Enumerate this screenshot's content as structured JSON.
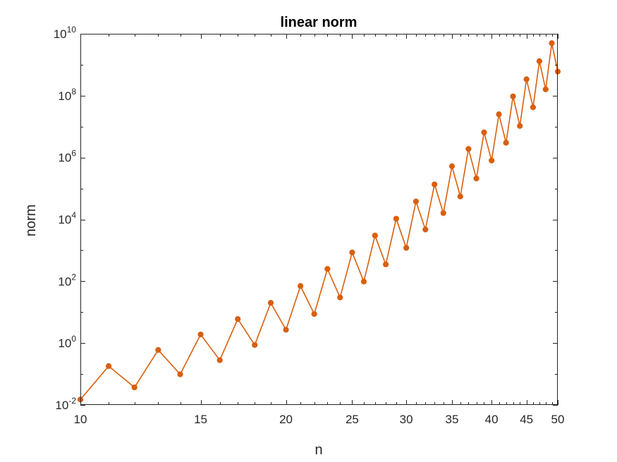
{
  "chart_data": {
    "type": "line",
    "title": "linear norm",
    "xlabel": "n",
    "ylabel": "norm",
    "xscale": "log",
    "yscale": "log",
    "xlim": [
      10,
      50
    ],
    "ylim": [
      0.01,
      10000000000
    ],
    "xticks": [
      "10",
      "15",
      "20",
      "25",
      "30",
      "35",
      "40",
      "45",
      "50"
    ],
    "xtick_values": [
      10,
      15,
      20,
      25,
      30,
      35,
      40,
      45,
      50
    ],
    "yticks": [
      {
        "value": 0.01,
        "base": "10",
        "exp": "-2"
      },
      {
        "value": 1,
        "base": "10",
        "exp": "0"
      },
      {
        "value": 100,
        "base": "10",
        "exp": "2"
      },
      {
        "value": 10000,
        "base": "10",
        "exp": "4"
      },
      {
        "value": 1000000,
        "base": "10",
        "exp": "6"
      },
      {
        "value": 100000000,
        "base": "10",
        "exp": "8"
      },
      {
        "value": 10000000000,
        "base": "10",
        "exp": "10"
      }
    ],
    "grid": false,
    "series": [
      {
        "color": "#D95F0E",
        "marker": "filled-circle",
        "x": [
          10,
          11,
          12,
          13,
          14,
          15,
          16,
          17,
          18,
          19,
          20,
          21,
          22,
          23,
          24,
          25,
          26,
          27,
          28,
          29,
          30,
          31,
          32,
          33,
          34,
          35,
          36,
          37,
          38,
          39,
          40,
          41,
          42,
          43,
          44,
          45,
          46,
          47,
          48,
          49,
          50
        ],
        "y": [
          0.015,
          0.18,
          0.037,
          0.6,
          0.098,
          1.9,
          0.28,
          6.0,
          0.87,
          20.0,
          2.7,
          70.0,
          8.7,
          250,
          30,
          850,
          98,
          3000,
          350,
          10500,
          1200,
          38000,
          4700,
          135000,
          16000,
          520000,
          55000,
          1900000,
          210000,
          6500000,
          800000,
          25000000,
          3000000,
          95000000,
          10500000,
          340000000,
          42000000,
          1300000000,
          160000000,
          5000000000,
          600000000
        ]
      }
    ]
  }
}
